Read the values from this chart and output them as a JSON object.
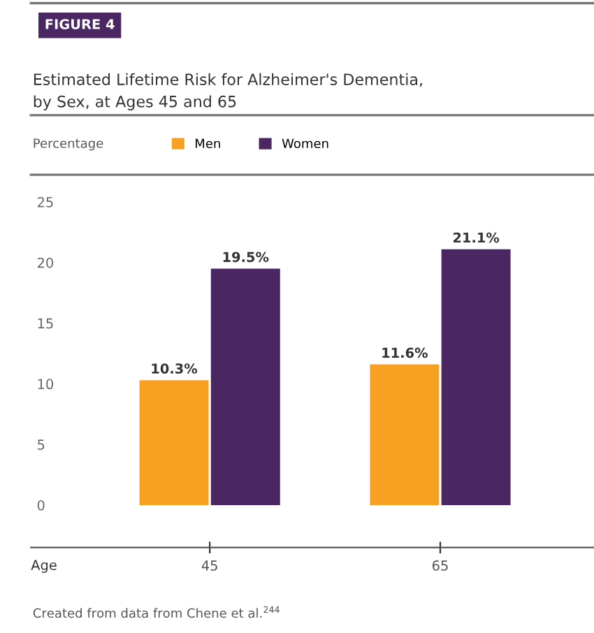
{
  "chart_data": {
    "type": "bar",
    "title": "Estimated Lifetime Risk for Alzheimer's Dementia,\nby Sex, at Ages 45 and 65",
    "ylabel": "Percentage",
    "xlabel": "Age",
    "annotations": [
      "FIGURE 4",
      "Created from data from Chene et al.$^{244}$"
    ],
    "categories": [
      "45",
      "65"
    ],
    "series": [
      {
        "name": "Men",
        "color": "#f7a021",
        "values": [
          10.3,
          11.6
        ],
        "value_labels": [
          "10.3%",
          "11.6%"
        ]
      },
      {
        "name": "Women",
        "color": "#4a2762",
        "values": [
          19.5,
          21.1
        ],
        "value_labels": [
          "19.5%",
          "21.1%"
        ]
      }
    ],
    "ylim": [
      -3.5,
      25
    ],
    "yticks": [
      0,
      5,
      10,
      15,
      20,
      25
    ],
    "grid": false,
    "legend": "top"
  }
}
